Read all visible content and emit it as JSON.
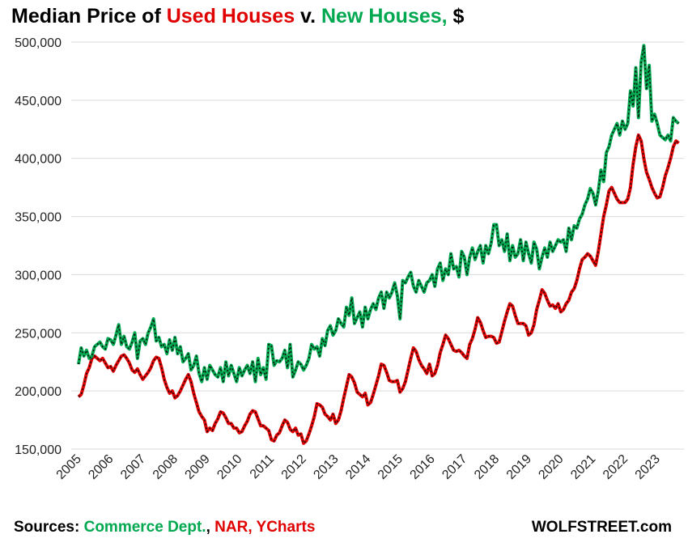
{
  "chart_data": {
    "type": "line",
    "title_parts": [
      "Median Price of ",
      "Used Houses",
      " v. ",
      "New Houses,",
      " $"
    ],
    "categories": [
      "2005",
      null,
      null,
      null,
      null,
      null,
      null,
      null,
      null,
      null,
      null,
      null,
      "2006",
      null,
      null,
      null,
      null,
      null,
      null,
      null,
      null,
      null,
      null,
      null,
      "2007",
      null,
      null,
      null,
      null,
      null,
      null,
      null,
      null,
      null,
      null,
      null,
      "2008",
      null,
      null,
      null,
      null,
      null,
      null,
      null,
      null,
      null,
      null,
      null,
      "2009",
      null,
      null,
      null,
      null,
      null,
      null,
      null,
      null,
      null,
      null,
      null,
      "2010",
      null,
      null,
      null,
      null,
      null,
      null,
      null,
      null,
      null,
      null,
      null,
      "2011",
      null,
      null,
      null,
      null,
      null,
      null,
      null,
      null,
      null,
      null,
      null,
      "2012",
      null,
      null,
      null,
      null,
      null,
      null,
      null,
      null,
      null,
      null,
      null,
      "2013",
      null,
      null,
      null,
      null,
      null,
      null,
      null,
      null,
      null,
      null,
      null,
      "2014",
      null,
      null,
      null,
      null,
      null,
      null,
      null,
      null,
      null,
      null,
      null,
      "2015",
      null,
      null,
      null,
      null,
      null,
      null,
      null,
      null,
      null,
      null,
      null,
      "2016",
      null,
      null,
      null,
      null,
      null,
      null,
      null,
      null,
      null,
      null,
      null,
      "2017",
      null,
      null,
      null,
      null,
      null,
      null,
      null,
      null,
      null,
      null,
      null,
      "2018",
      null,
      null,
      null,
      null,
      null,
      null,
      null,
      null,
      null,
      null,
      null,
      "2019",
      null,
      null,
      null,
      null,
      null,
      null,
      null,
      null,
      null,
      null,
      null,
      "2020",
      null,
      null,
      null,
      null,
      null,
      null,
      null,
      null,
      null,
      null,
      null,
      "2021",
      null,
      null,
      null,
      null,
      null,
      null,
      null,
      null,
      null,
      null,
      null,
      "2022",
      null,
      null,
      null,
      null,
      null,
      null,
      null,
      null,
      null,
      null,
      null,
      "2023",
      null,
      null,
      null,
      null,
      null,
      null,
      null,
      null
    ],
    "series": [
      {
        "name": "Used Houses",
        "color": "#e00000",
        "values": [
          195000,
          197000,
          205000,
          215000,
          220000,
          228000,
          230000,
          228000,
          226000,
          228000,
          224000,
          220000,
          221000,
          217000,
          222000,
          226000,
          230000,
          231000,
          228000,
          224000,
          218000,
          216000,
          219000,
          214000,
          210000,
          213000,
          216000,
          220000,
          226000,
          229000,
          228000,
          220000,
          210000,
          203000,
          198000,
          200000,
          194000,
          196000,
          200000,
          205000,
          210000,
          214000,
          208000,
          198000,
          190000,
          182000,
          178000,
          175000,
          165000,
          168000,
          166000,
          172000,
          176000,
          182000,
          181000,
          177000,
          172000,
          172000,
          168000,
          168000,
          164000,
          165000,
          170000,
          174000,
          180000,
          183000,
          182000,
          176000,
          170000,
          170000,
          168000,
          166000,
          158000,
          157000,
          162000,
          164000,
          170000,
          175000,
          173000,
          167000,
          165000,
          168000,
          162000,
          163000,
          155000,
          157000,
          163000,
          170000,
          178000,
          189000,
          188000,
          186000,
          180000,
          178000,
          175000,
          180000,
          172000,
          175000,
          183000,
          194000,
          204000,
          214000,
          212000,
          207000,
          199000,
          197000,
          195000,
          198000,
          188000,
          190000,
          197000,
          205000,
          213000,
          223000,
          222000,
          216000,
          209000,
          208000,
          208000,
          209000,
          199000,
          202000,
          208000,
          218000,
          228000,
          237000,
          234000,
          227000,
          222000,
          219000,
          215000,
          223000,
          213000,
          215000,
          222000,
          233000,
          240000,
          248000,
          245000,
          240000,
          235000,
          234000,
          235000,
          233000,
          230000,
          228000,
          240000,
          245000,
          253000,
          263000,
          259000,
          252000,
          246000,
          247000,
          247000,
          246000,
          241000,
          242000,
          251000,
          260000,
          268000,
          275000,
          273000,
          265000,
          258000,
          258000,
          258000,
          256000,
          248000,
          250000,
          257000,
          270000,
          278000,
          287000,
          284000,
          278000,
          273000,
          274000,
          271000,
          275000,
          268000,
          270000,
          275000,
          278000,
          285000,
          288000,
          295000,
          305000,
          313000,
          315000,
          318000,
          316000,
          312000,
          308000,
          320000,
          335000,
          350000,
          360000,
          372000,
          375000,
          370000,
          365000,
          362000,
          362000,
          362000,
          365000,
          375000,
          395000,
          410000,
          420000,
          415000,
          400000,
          388000,
          382000,
          375000,
          370000,
          366000,
          367000,
          375000,
          385000,
          392000,
          400000,
          410000,
          415000,
          413000
        ]
      },
      {
        "name": "New Houses",
        "color": "#00a84f",
        "values": [
          223000,
          237000,
          230000,
          235000,
          228000,
          230000,
          238000,
          240000,
          242000,
          238000,
          236000,
          245000,
          244000,
          240000,
          248000,
          257000,
          240000,
          247000,
          238000,
          236000,
          242000,
          250000,
          228000,
          243000,
          245000,
          240000,
          250000,
          255000,
          262000,
          243000,
          246000,
          238000,
          240000,
          232000,
          244000,
          235000,
          246000,
          232000,
          238000,
          225000,
          228000,
          232000,
          218000,
          222000,
          230000,
          215000,
          208000,
          220000,
          210000,
          222000,
          218000,
          214000,
          212000,
          220000,
          208000,
          225000,
          213000,
          222000,
          215000,
          208000,
          220000,
          213000,
          218000,
          222000,
          215000,
          225000,
          208000,
          228000,
          214000,
          220000,
          210000,
          240000,
          239000,
          222000,
          226000,
          225000,
          228000,
          235000,
          220000,
          240000,
          212000,
          218000,
          225000,
          223000,
          218000,
          222000,
          228000,
          240000,
          236000,
          238000,
          230000,
          245000,
          239000,
          252000,
          256000,
          248000,
          252000,
          262000,
          258000,
          255000,
          272000,
          265000,
          280000,
          258000,
          263000,
          268000,
          255000,
          272000,
          262000,
          270000,
          275000,
          270000,
          280000,
          285000,
          271000,
          285000,
          280000,
          285000,
          293000,
          282000,
          262000,
          295000,
          293000,
          298000,
          302000,
          290000,
          285000,
          295000,
          290000,
          285000,
          293000,
          295000,
          300000,
          290000,
          305000,
          310000,
          295000,
          305000,
          300000,
          318000,
          305000,
          307000,
          298000,
          320000,
          315000,
          300000,
          315000,
          323000,
          313000,
          320000,
          325000,
          310000,
          325000,
          318000,
          327000,
          343000,
          343000,
          325000,
          330000,
          320000,
          335000,
          312000,
          325000,
          315000,
          318000,
          330000,
          312000,
          328000,
          318000,
          310000,
          328000,
          322000,
          305000,
          315000,
          323000,
          315000,
          328000,
          320000,
          325000,
          330000,
          328000,
          330000,
          320000,
          340000,
          330000,
          342000,
          340000,
          348000,
          352000,
          360000,
          365000,
          374000,
          370000,
          360000,
          372000,
          390000,
          380000,
          405000,
          410000,
          420000,
          425000,
          430000,
          420000,
          432000,
          425000,
          430000,
          458000,
          445000,
          478000,
          435000,
          483000,
          497000,
          460000,
          480000,
          432000,
          438000,
          430000,
          420000,
          418000,
          416000,
          420000,
          415000,
          435000,
          432000,
          430000
        ]
      }
    ],
    "ylim": [
      150000,
      500000
    ],
    "yticks": [
      {
        "value": 150000,
        "label": "150,000"
      },
      {
        "value": 200000,
        "label": "200,000"
      },
      {
        "value": 250000,
        "label": "250,000"
      },
      {
        "value": 300000,
        "label": "300,000"
      },
      {
        "value": 350000,
        "label": "350,000"
      },
      {
        "value": 400000,
        "label": "400,000"
      },
      {
        "value": 450000,
        "label": "450,000"
      },
      {
        "value": 500000,
        "label": "500,000"
      }
    ],
    "grid": true
  },
  "footer": {
    "sources_label": "Sources: ",
    "source_1": "Commerce Dept.",
    "separator": ", ",
    "source_2": "NAR, YCharts",
    "brand": "WOLFSTREET.com"
  }
}
